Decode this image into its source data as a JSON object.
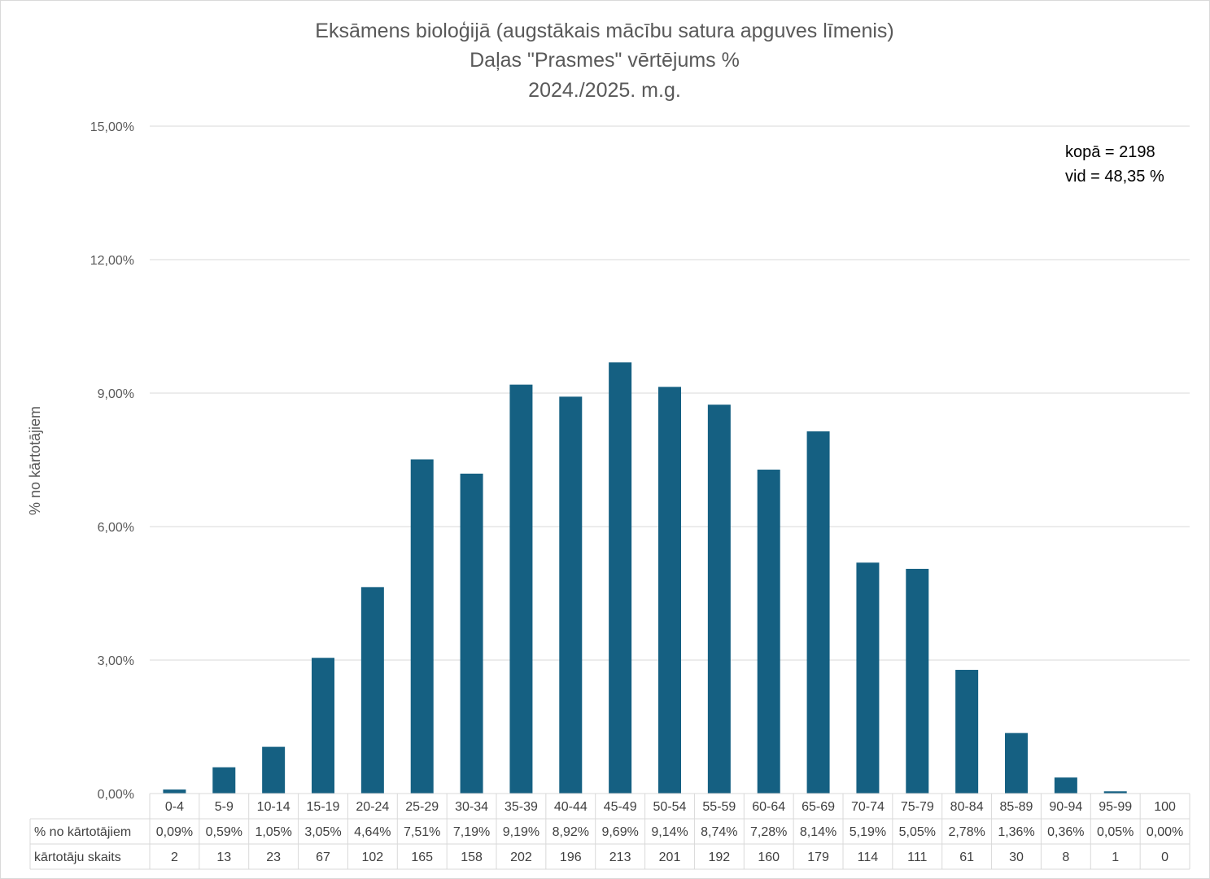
{
  "chart_data": {
    "type": "bar",
    "title": [
      "Eksāmens bioloģijā (augstākais mācību satura apguves līmenis)",
      "Daļas \"Prasmes\" vērtējums %",
      "2024./2025. m.g."
    ],
    "ylabel": "% no kārtotājiem",
    "ylim": [
      0,
      15
    ],
    "yticks": [
      "0,00%",
      "3,00%",
      "6,00%",
      "9,00%",
      "12,00%",
      "15,00%"
    ],
    "ytick_values": [
      0,
      3,
      6,
      9,
      12,
      15
    ],
    "grid": true,
    "bar_color": "#156082",
    "categories": [
      "0-4",
      "5-9",
      "10-14",
      "15-19",
      "20-24",
      "25-29",
      "30-34",
      "35-39",
      "40-44",
      "45-49",
      "50-54",
      "55-59",
      "60-64",
      "65-69",
      "70-74",
      "75-79",
      "80-84",
      "85-89",
      "90-94",
      "95-99",
      "100"
    ],
    "values": [
      0.09,
      0.59,
      1.05,
      3.05,
      4.64,
      7.51,
      7.19,
      9.19,
      8.92,
      9.69,
      9.14,
      8.74,
      7.28,
      8.14,
      5.19,
      5.05,
      2.78,
      1.36,
      0.36,
      0.05,
      0.0
    ],
    "data_table": {
      "rows": [
        {
          "label": "% no kārtotājiem",
          "values": [
            "0,09%",
            "0,59%",
            "1,05%",
            "3,05%",
            "4,64%",
            "7,51%",
            "7,19%",
            "9,19%",
            "8,92%",
            "9,69%",
            "9,14%",
            "8,74%",
            "7,28%",
            "8,14%",
            "5,19%",
            "5,05%",
            "2,78%",
            "1,36%",
            "0,36%",
            "0,05%",
            "0,00%"
          ]
        },
        {
          "label": "kārtotāju skaits",
          "values": [
            "2",
            "13",
            "23",
            "67",
            "102",
            "165",
            "158",
            "202",
            "196",
            "213",
            "201",
            "192",
            "160",
            "179",
            "114",
            "111",
            "61",
            "30",
            "8",
            "1",
            "0"
          ]
        }
      ]
    },
    "annotations": [
      "kopā = 2198",
      "vid = 48,35 %"
    ]
  }
}
